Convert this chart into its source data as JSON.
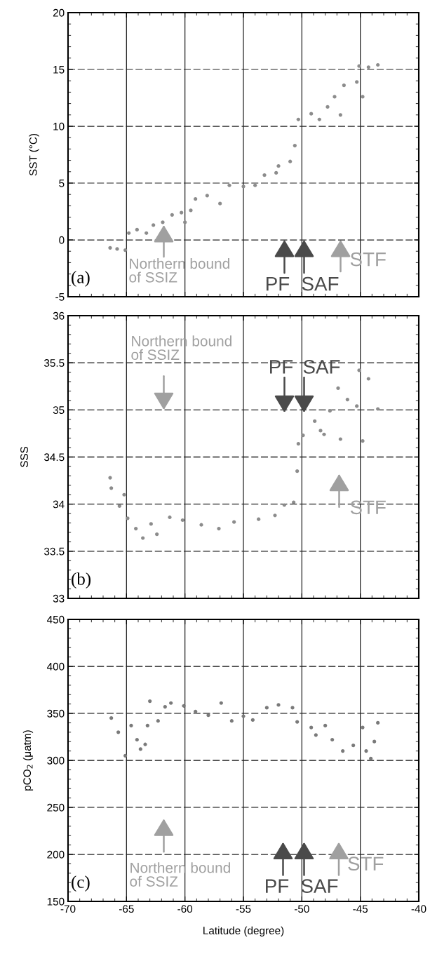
{
  "chart_data": [
    {
      "type": "scatter",
      "ylabel": "SST (°C)",
      "xlim": [
        -70,
        -40
      ],
      "xticks": [
        -70,
        -65,
        -60,
        -55,
        -50,
        -45,
        -40
      ],
      "ylim": [
        -5,
        20
      ],
      "yticks": [
        -5,
        0,
        5,
        10,
        15,
        20
      ],
      "grid": true,
      "tick_labels": "y",
      "marker": "circle",
      "color": "#8c8c8c",
      "x": [
        -66.4,
        -65.8,
        -65.1,
        -64.8,
        -64.1,
        -63.3,
        -62.7,
        -61.9,
        -61.1,
        -60.3,
        -60.0,
        -59.5,
        -59.1,
        -58.1,
        -57.0,
        -56.2,
        -55.0,
        -54.0,
        -53.2,
        -52.2,
        -52.0,
        -51.0,
        -50.6,
        -50.3,
        -49.2,
        -48.5,
        -47.8,
        -47.2,
        -46.7,
        -46.4,
        -45.3,
        -45.1,
        -44.8,
        -44.3,
        -43.5
      ],
      "values": [
        -0.7,
        -0.8,
        -0.9,
        0.6,
        0.9,
        0.6,
        1.3,
        1.55,
        2.2,
        2.4,
        1.55,
        2.6,
        3.6,
        3.9,
        3.2,
        4.8,
        4.7,
        4.8,
        5.7,
        5.9,
        6.5,
        6.9,
        8.3,
        10.6,
        11.1,
        10.6,
        11.7,
        12.6,
        11.0,
        13.6,
        13.9,
        15.3,
        12.6,
        15.2,
        15.4
      ],
      "annotations": [
        "Northern bound\nof SSIZ",
        "PF",
        "SAF",
        "STF",
        "(a)"
      ]
    },
    {
      "type": "scatter",
      "ylabel": "SSS",
      "xlim": [
        -70,
        -40
      ],
      "xticks": [
        -70,
        -65,
        -60,
        -55,
        -50,
        -45,
        -40
      ],
      "ylim": [
        33,
        36
      ],
      "yticks": [
        33,
        33.5,
        34,
        34.5,
        35,
        35.5,
        36
      ],
      "grid": true,
      "tick_labels": "y",
      "marker": "circle",
      "color": "#8c8c8c",
      "x": [
        -66.4,
        -66.3,
        -65.6,
        -65.2,
        -64.9,
        -64.2,
        -63.6,
        -62.9,
        -62.4,
        -61.3,
        -60.2,
        -58.6,
        -57.1,
        -55.8,
        -53.7,
        -52.3,
        -51.5,
        -50.7,
        -50.4,
        -50.3,
        -49.9,
        -48.9,
        -48.4,
        -48.1,
        -47.6,
        -46.9,
        -46.7,
        -46.1,
        -45.3,
        -45.1,
        -44.8,
        -44.3,
        -43.5
      ],
      "values": [
        34.28,
        34.17,
        33.98,
        34.1,
        33.85,
        33.74,
        33.64,
        33.79,
        33.68,
        33.86,
        33.83,
        33.78,
        33.74,
        33.81,
        33.84,
        33.88,
        33.99,
        34.02,
        34.35,
        34.64,
        34.73,
        34.88,
        34.78,
        34.74,
        34.99,
        35.23,
        34.69,
        35.11,
        35.04,
        35.42,
        34.67,
        35.33,
        35.01
      ],
      "annotations": [
        "Northern bound\nof SSIZ",
        "PF",
        "SAF",
        "STF",
        "(b)"
      ]
    },
    {
      "type": "scatter",
      "ylabel": "pCO$_{2}$ (μatm)",
      "xlabel": "Latitude (degree)",
      "xlim": [
        -70,
        -40
      ],
      "xticks": [
        -70,
        -65,
        -60,
        -55,
        -50,
        -45,
        -40
      ],
      "ylim": [
        150,
        450
      ],
      "yticks": [
        150,
        200,
        250,
        300,
        350,
        400,
        450
      ],
      "grid": true,
      "marker": "circle",
      "color": "#7a7a7a",
      "x": [
        -66.3,
        -65.7,
        -65.1,
        -64.6,
        -64.1,
        -63.8,
        -63.4,
        -63.2,
        -63.0,
        -62.3,
        -61.7,
        -61.2,
        -60.1,
        -59.1,
        -58.0,
        -56.9,
        -56.0,
        -55.0,
        -54.2,
        -53.0,
        -52.0,
        -50.8,
        -50.4,
        -49.2,
        -48.8,
        -48.0,
        -47.4,
        -46.5,
        -45.6,
        -44.8,
        -44.5,
        -44.1,
        -43.8,
        -43.5
      ],
      "values": [
        345,
        330,
        305,
        337,
        322,
        312,
        317,
        337,
        363,
        342,
        357,
        361,
        358,
        352,
        348,
        361,
        342,
        347,
        343,
        356,
        359,
        356,
        341,
        335,
        327,
        337,
        322,
        310,
        316,
        335,
        310,
        302,
        320,
        340
      ],
      "annotations": [
        "Northern bound\nof SSIZ",
        "PF",
        "SAF",
        "STF",
        "(c)"
      ]
    }
  ]
}
